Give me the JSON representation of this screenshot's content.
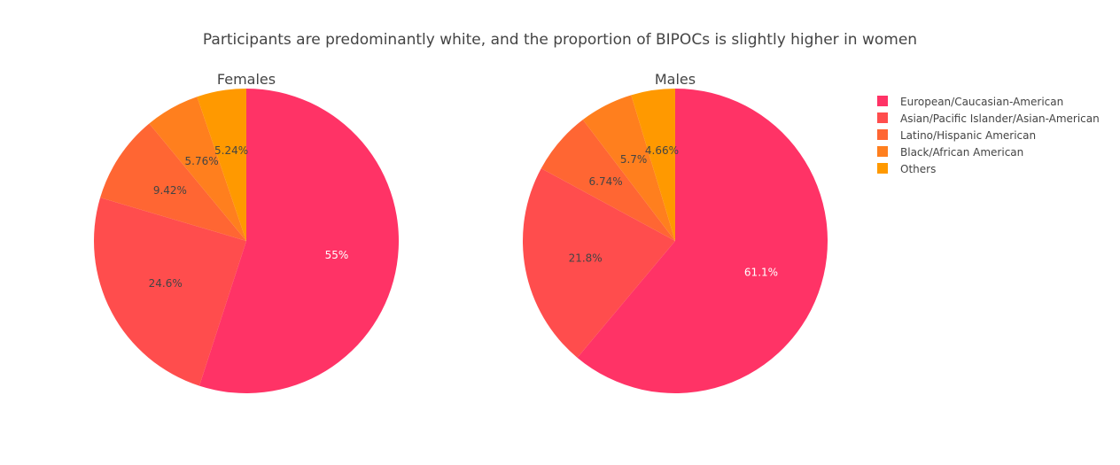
{
  "chart_data": {
    "type": "pie",
    "title": "Participants are predominantly white, and the proportion of BIPOCs is slightly higher in women",
    "legend_position": "right",
    "categories": [
      "European/Caucasian-American",
      "Asian/Pacific Islander/Asian-American",
      "Latino/Hispanic American",
      "Black/African American",
      "Others"
    ],
    "colors": [
      "#ff3366",
      "#ff4d4d",
      "#ff6633",
      "#ff7f1e",
      "#ff9900"
    ],
    "pies": [
      {
        "title": "Females",
        "values": [
          55,
          24.6,
          9.42,
          5.76,
          5.24
        ],
        "labels": [
          "55%",
          "24.6%",
          "9.42%",
          "5.76%",
          "5.24%"
        ]
      },
      {
        "title": "Males",
        "values": [
          61.1,
          21.8,
          6.74,
          5.7,
          4.66
        ],
        "labels": [
          "61.1%",
          "21.8%",
          "6.74%",
          "5.7%",
          "4.66%"
        ]
      }
    ]
  }
}
